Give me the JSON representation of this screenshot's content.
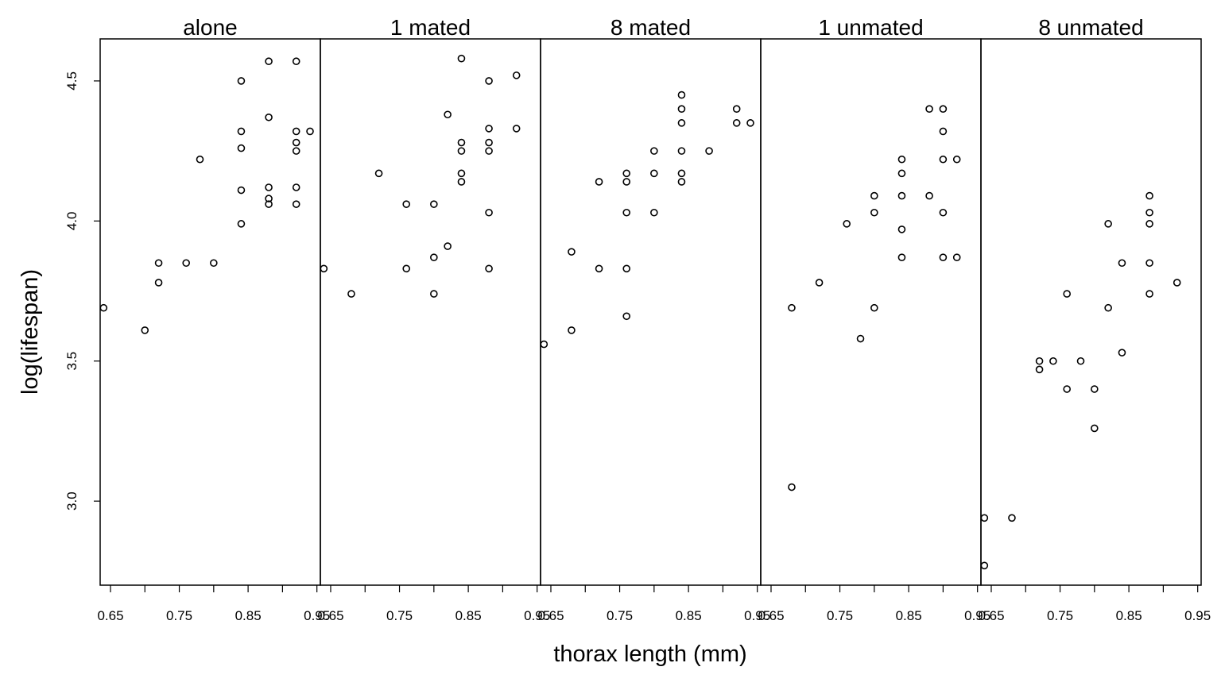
{
  "chart_data": {
    "type": "scatter",
    "title": "",
    "xlabel": "thorax length (mm)",
    "ylabel": "log(lifespan)",
    "xlim": [
      0.635,
      0.955
    ],
    "ylim": [
      2.7,
      4.65
    ],
    "xticks": [
      0.65,
      0.7,
      0.75,
      0.8,
      0.85,
      0.9,
      0.95
    ],
    "xtick_labels": [
      "0.65",
      "",
      "0.75",
      "",
      "0.85",
      "",
      "0.95"
    ],
    "yticks": [
      3.0,
      3.5,
      4.0,
      4.5
    ],
    "ytick_labels": [
      "3.0",
      "3.5",
      "4.0",
      "4.5"
    ],
    "grid": false,
    "legend": "none",
    "panels": [
      {
        "name": "alone",
        "points": [
          [
            0.64,
            3.69
          ],
          [
            0.7,
            3.61
          ],
          [
            0.72,
            3.85
          ],
          [
            0.72,
            3.78
          ],
          [
            0.76,
            3.85
          ],
          [
            0.78,
            4.22
          ],
          [
            0.8,
            3.85
          ],
          [
            0.84,
            4.5
          ],
          [
            0.84,
            4.32
          ],
          [
            0.84,
            4.26
          ],
          [
            0.84,
            4.11
          ],
          [
            0.84,
            3.99
          ],
          [
            0.88,
            4.57
          ],
          [
            0.88,
            4.37
          ],
          [
            0.88,
            4.12
          ],
          [
            0.88,
            4.08
          ],
          [
            0.88,
            4.06
          ],
          [
            0.92,
            4.57
          ],
          [
            0.92,
            4.32
          ],
          [
            0.92,
            4.28
          ],
          [
            0.92,
            4.25
          ],
          [
            0.92,
            4.12
          ],
          [
            0.92,
            4.06
          ],
          [
            0.94,
            4.32
          ]
        ]
      },
      {
        "name": "1 mated",
        "points": [
          [
            0.64,
            3.83
          ],
          [
            0.68,
            3.74
          ],
          [
            0.72,
            4.17
          ],
          [
            0.76,
            4.06
          ],
          [
            0.76,
            3.83
          ],
          [
            0.8,
            4.06
          ],
          [
            0.8,
            3.87
          ],
          [
            0.8,
            3.74
          ],
          [
            0.82,
            4.38
          ],
          [
            0.82,
            3.91
          ],
          [
            0.84,
            4.58
          ],
          [
            0.84,
            4.28
          ],
          [
            0.84,
            4.25
          ],
          [
            0.84,
            4.17
          ],
          [
            0.84,
            4.14
          ],
          [
            0.88,
            4.5
          ],
          [
            0.88,
            4.33
          ],
          [
            0.88,
            4.28
          ],
          [
            0.88,
            4.25
          ],
          [
            0.88,
            4.03
          ],
          [
            0.88,
            3.83
          ],
          [
            0.92,
            4.52
          ],
          [
            0.92,
            4.33
          ]
        ]
      },
      {
        "name": "8 mated",
        "points": [
          [
            0.64,
            3.56
          ],
          [
            0.68,
            3.89
          ],
          [
            0.68,
            3.61
          ],
          [
            0.72,
            4.14
          ],
          [
            0.72,
            3.83
          ],
          [
            0.76,
            4.17
          ],
          [
            0.76,
            4.14
          ],
          [
            0.76,
            4.03
          ],
          [
            0.76,
            3.83
          ],
          [
            0.76,
            3.66
          ],
          [
            0.8,
            4.25
          ],
          [
            0.8,
            4.17
          ],
          [
            0.8,
            4.03
          ],
          [
            0.84,
            4.45
          ],
          [
            0.84,
            4.4
          ],
          [
            0.84,
            4.35
          ],
          [
            0.84,
            4.25
          ],
          [
            0.84,
            4.17
          ],
          [
            0.84,
            4.14
          ],
          [
            0.88,
            4.25
          ],
          [
            0.92,
            4.4
          ],
          [
            0.92,
            4.35
          ],
          [
            0.94,
            4.35
          ]
        ]
      },
      {
        "name": "1 unmated",
        "points": [
          [
            0.68,
            3.69
          ],
          [
            0.68,
            3.05
          ],
          [
            0.72,
            3.78
          ],
          [
            0.76,
            3.99
          ],
          [
            0.78,
            3.58
          ],
          [
            0.8,
            4.09
          ],
          [
            0.8,
            4.03
          ],
          [
            0.8,
            3.69
          ],
          [
            0.84,
            4.22
          ],
          [
            0.84,
            4.17
          ],
          [
            0.84,
            4.09
          ],
          [
            0.84,
            3.97
          ],
          [
            0.84,
            3.87
          ],
          [
            0.88,
            4.4
          ],
          [
            0.88,
            4.09
          ],
          [
            0.9,
            4.4
          ],
          [
            0.9,
            4.32
          ],
          [
            0.9,
            4.22
          ],
          [
            0.9,
            4.03
          ],
          [
            0.9,
            3.87
          ],
          [
            0.92,
            4.22
          ],
          [
            0.92,
            3.87
          ]
        ]
      },
      {
        "name": "8 unmated",
        "points": [
          [
            0.64,
            2.94
          ],
          [
            0.64,
            2.77
          ],
          [
            0.68,
            2.94
          ],
          [
            0.72,
            3.5
          ],
          [
            0.72,
            3.47
          ],
          [
            0.74,
            3.5
          ],
          [
            0.76,
            3.74
          ],
          [
            0.76,
            3.4
          ],
          [
            0.78,
            3.5
          ],
          [
            0.8,
            3.4
          ],
          [
            0.8,
            3.26
          ],
          [
            0.82,
            3.99
          ],
          [
            0.82,
            3.69
          ],
          [
            0.84,
            3.85
          ],
          [
            0.84,
            3.53
          ],
          [
            0.88,
            4.09
          ],
          [
            0.88,
            4.03
          ],
          [
            0.88,
            3.99
          ],
          [
            0.88,
            3.85
          ],
          [
            0.88,
            3.74
          ],
          [
            0.92,
            3.78
          ]
        ]
      }
    ]
  }
}
